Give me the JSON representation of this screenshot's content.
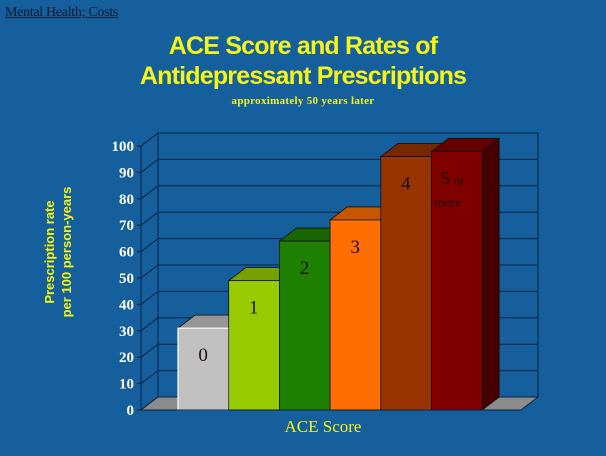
{
  "slide": {
    "section_label": "Mental Health; Costs",
    "title_line1": "ACE Score and Rates of",
    "title_line2": "Antidepressant Prescriptions",
    "subtitle": "approximately 50 years later",
    "ylabel_line1": "Prescription rate",
    "ylabel_line2": "per 100 person-years",
    "xlabel": "ACE Score"
  },
  "colors": {
    "background": "#145f9c",
    "title": "#f5f51a",
    "grid": "#0d2240"
  },
  "chart_data": {
    "type": "bar",
    "style": "3d",
    "title": "ACE Score and Rates of Antidepressant Prescriptions",
    "subtitle": "approximately 50 years later",
    "xlabel": "ACE Score",
    "ylabel": "Prescription rate per 100 person-years",
    "ylim": [
      0,
      100
    ],
    "yticks": [
      0,
      10,
      20,
      30,
      40,
      50,
      60,
      70,
      80,
      90,
      100
    ],
    "grid": true,
    "legend": false,
    "categories": [
      "0",
      "1",
      "2",
      "3",
      "4",
      "5 or more"
    ],
    "values": [
      31,
      49,
      64,
      72,
      96,
      98
    ],
    "bar_colors": [
      "#c0c0c0",
      "#99cc00",
      "#1e8000",
      "#ff6e00",
      "#993300",
      "#800000"
    ]
  }
}
